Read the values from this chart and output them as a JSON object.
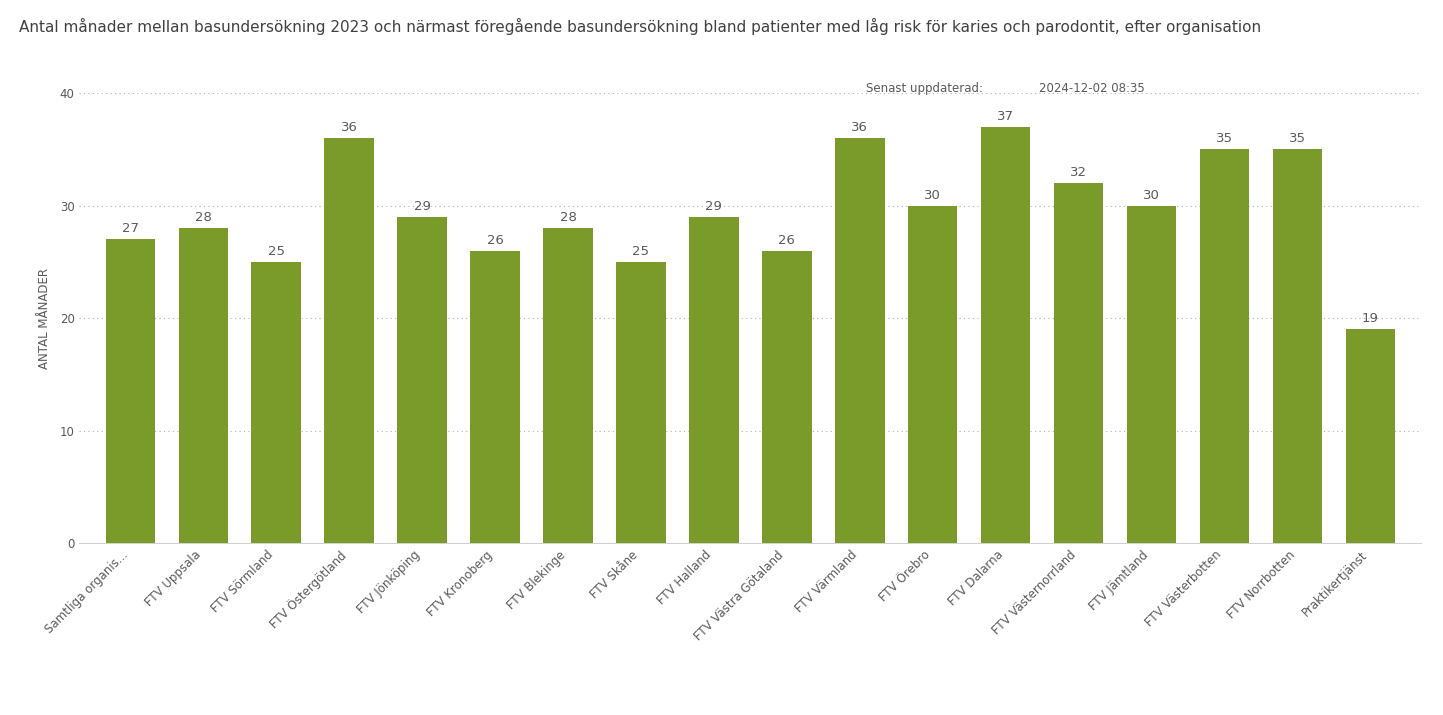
{
  "title": "Antal månader mellan basundersökning 2023 och närmast föregående basundersökning bland patienter med låg risk för karies och parodontit, efter organisation",
  "ylabel": "ANTAL MÅNADER",
  "categories": [
    "Samtliga organis...",
    "FTV Uppsala",
    "FTV Sörmland",
    "FTV Östergötland",
    "FTV Jönköping",
    "FTV Kronoberg",
    "FTV Blekinge",
    "FTV Skåne",
    "FTV Halland",
    "FTV Västra Götaland",
    "FTV Värmland",
    "FTV Örebro",
    "FTV Dalarna",
    "FTV Västernorrland",
    "FTV Jämtland",
    "FTV Västerbotten",
    "FTV Norrbotten",
    "Praktikertjänst"
  ],
  "values": [
    27,
    28,
    25,
    36,
    29,
    26,
    28,
    25,
    29,
    26,
    36,
    30,
    37,
    32,
    30,
    35,
    35,
    19
  ],
  "bar_color": "#7a9a2a",
  "ylim": [
    0,
    40
  ],
  "yticks": [
    0,
    10,
    20,
    30,
    40
  ],
  "background_color": "#ffffff",
  "plot_area_color": "#ffffff",
  "grid_color": "#b0b0b0",
  "title_color": "#404040",
  "axis_label_color": "#595959",
  "tick_label_color": "#595959",
  "value_label_color": "#595959",
  "timestamp_label": "Senast uppdaterad:",
  "timestamp_value": "2024-12-02 08:35",
  "title_fontsize": 11.0,
  "ylabel_fontsize": 8.5,
  "tick_fontsize": 8.5,
  "value_fontsize": 9.5,
  "bottom_bar_color": "#1f5c8b"
}
